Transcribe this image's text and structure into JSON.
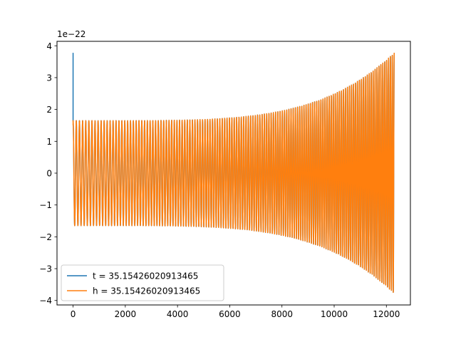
{
  "chart_data": {
    "type": "line",
    "title": "",
    "xlabel": "",
    "ylabel": "",
    "y_offset_label": "1e−22",
    "xlim": [
      -616,
      12920
    ],
    "ylim": [
      -4.14,
      4.14
    ],
    "x_ticks": [
      0,
      2000,
      4000,
      6000,
      8000,
      10000,
      12000
    ],
    "x_tick_labels": [
      "0",
      "2000",
      "4000",
      "6000",
      "8000",
      "10000",
      "12000"
    ],
    "y_ticks": [
      -4,
      -3,
      -2,
      -1,
      0,
      1,
      2,
      3,
      4
    ],
    "y_tick_labels": [
      "−4",
      "−3",
      "−2",
      "−1",
      "0",
      "1",
      "2",
      "3",
      "4"
    ],
    "grid": false,
    "legend_position": "lower-left",
    "series": [
      {
        "name": "t = 35.15426020913465",
        "color": "#1f77b4",
        "description_points": {
          "x_start": 0,
          "x_end": 12300,
          "initial_spike": 3.78,
          "amplitude_start": 1.65,
          "amplitude_end": 3.78,
          "cycles": 135
        }
      },
      {
        "name": "h = 35.15426020913465",
        "color": "#ff7f0e",
        "description_points": {
          "x_start": 0,
          "x_end": 12300,
          "initial_spike": 1.5,
          "amplitude_start": 1.65,
          "amplitude_end": 3.78,
          "cycles": 135
        }
      }
    ]
  }
}
